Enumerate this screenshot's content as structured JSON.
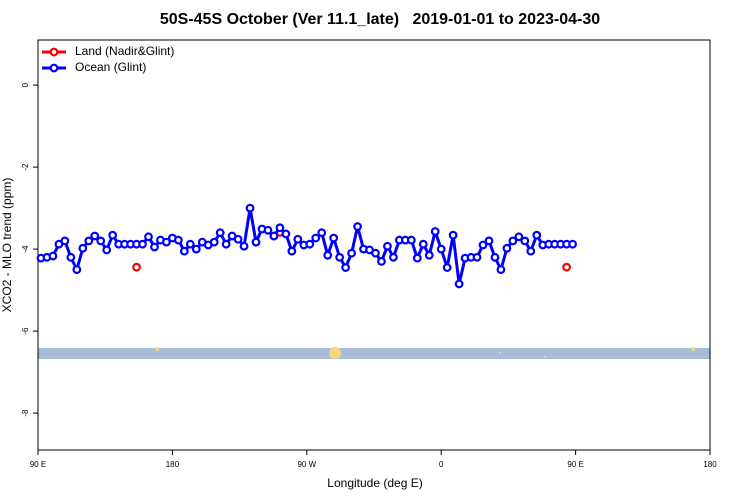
{
  "chart_data": {
    "type": "line",
    "title": "50S-45S October (Ver 11.1_late)   2019-01-01 to 2023-04-30",
    "xlabel": "Longitude (deg E)",
    "ylabel": "XCO2 - MLO trend (ppm)",
    "xlim": [
      90,
      540
    ],
    "ylim": [
      -8.9,
      1.1
    ],
    "xticks": [
      {
        "value": 90,
        "label": "90 E"
      },
      180,
      {
        "value": 270,
        "label": "90 W"
      },
      {
        "value": 360,
        "label": "0"
      },
      {
        "value": 450,
        "label": "90 E"
      },
      {
        "value": 540,
        "label": "180"
      }
    ],
    "yticks": [
      0,
      -2,
      -4,
      -6,
      -8
    ],
    "legend": "top-left",
    "x": [
      92,
      96,
      100,
      104,
      108,
      112,
      116,
      120,
      124,
      128,
      132,
      136,
      140,
      144,
      148,
      152,
      156,
      160,
      164,
      168,
      172,
      176,
      180,
      184,
      188,
      192,
      196,
      200,
      204,
      208,
      212,
      216,
      220,
      224,
      228,
      232,
      236,
      240,
      244,
      248,
      252,
      256,
      260,
      264,
      268,
      272,
      276,
      280,
      284,
      288,
      292,
      296,
      300,
      304,
      308,
      312,
      316,
      320,
      324,
      328,
      332,
      336,
      340,
      344,
      348,
      352,
      356,
      360,
      364,
      368,
      372,
      376,
      380,
      384,
      388,
      392,
      396,
      400,
      404,
      408,
      412,
      416,
      420,
      424,
      428,
      432,
      436,
      440,
      444,
      448
    ],
    "series": [
      {
        "name": "Land (Nadir&Glint)",
        "color": "#ff0000",
        "values": [
          null,
          null,
          null,
          null,
          null,
          null,
          null,
          null,
          null,
          null,
          null,
          null,
          null,
          null,
          null,
          null,
          -4.44,
          null,
          null,
          null,
          null,
          null,
          null,
          null,
          null,
          null,
          null,
          null,
          null,
          null,
          null,
          null,
          null,
          null,
          null,
          null,
          null,
          null,
          null,
          -3.68,
          -3.59,
          null,
          null,
          null,
          null,
          null,
          null,
          null,
          null,
          null,
          null,
          null,
          null,
          null,
          null,
          null,
          null,
          null,
          null,
          null,
          null,
          null,
          null,
          null,
          null,
          null,
          null,
          null,
          null,
          null,
          null,
          null,
          null,
          null,
          null,
          null,
          null,
          null,
          null,
          null,
          null,
          null,
          null,
          null,
          null,
          null,
          null,
          null,
          -4.44,
          null
        ]
      },
      {
        "name": "Ocean (Glint)",
        "color": "#0000ff",
        "values": [
          -4.22,
          -4.2,
          -4.17,
          -3.88,
          -3.8,
          -4.2,
          -4.5,
          -3.98,
          -3.8,
          -3.68,
          -3.8,
          -4.02,
          -3.66,
          -3.88,
          -3.88,
          -3.88,
          -3.88,
          -3.88,
          -3.7,
          -3.95,
          -3.78,
          -3.83,
          -3.73,
          -3.78,
          -4.05,
          -3.88,
          -4.0,
          -3.83,
          -3.9,
          -3.83,
          -3.6,
          -3.88,
          -3.68,
          -3.76,
          -3.93,
          -3.0,
          -3.83,
          -3.51,
          -3.54,
          -3.68,
          -3.48,
          -3.63,
          -4.05,
          -3.76,
          -3.9,
          -3.88,
          -3.73,
          -3.6,
          -4.15,
          -3.73,
          -4.2,
          -4.45,
          -4.1,
          -3.45,
          -4.0,
          -4.02,
          -4.1,
          -4.3,
          -3.93,
          -4.2,
          -3.78,
          -3.78,
          -3.78,
          -4.22,
          -3.88,
          -4.15,
          -3.57,
          -4.0,
          -4.45,
          -3.66,
          -4.85,
          -4.22,
          -4.2,
          -4.2,
          -3.9,
          -3.8,
          -4.2,
          -4.5,
          -3.98,
          -3.8,
          -3.7,
          -3.8,
          -4.05,
          -3.66,
          -3.9,
          -3.88,
          -3.88,
          -3.88,
          -3.88,
          -3.88
        ]
      }
    ]
  }
}
